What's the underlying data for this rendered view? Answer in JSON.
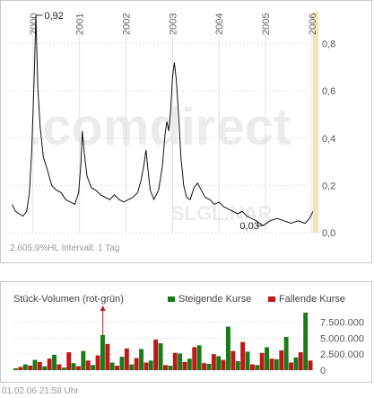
{
  "chart_data": [
    {
      "type": "line",
      "x_unit": "year",
      "x_tick_labels": [
        "2000",
        "2001",
        "2002",
        "2003",
        "2004",
        "2005",
        "2006"
      ],
      "y_tick_labels": [
        "0,0",
        "0,2",
        "0,4",
        "0,6",
        "0,8"
      ],
      "ylim": [
        0,
        0.92
      ],
      "xlim": [
        1999.5,
        2006.1
      ],
      "grid": true,
      "annotations": [
        {
          "label": "0,92",
          "x": 2000.05,
          "y": 0.92
        },
        {
          "label": "0,03",
          "x": 2004.95,
          "y": 0.03
        }
      ],
      "series": [
        {
          "color": "#111111",
          "points": [
            [
              1999.55,
              0.12
            ],
            [
              1999.62,
              0.09
            ],
            [
              1999.7,
              0.08
            ],
            [
              1999.78,
              0.07
            ],
            [
              1999.86,
              0.09
            ],
            [
              1999.92,
              0.17
            ],
            [
              1999.97,
              0.35
            ],
            [
              2000.03,
              0.7
            ],
            [
              2000.06,
              0.92
            ],
            [
              2000.1,
              0.62
            ],
            [
              2000.15,
              0.45
            ],
            [
              2000.22,
              0.32
            ],
            [
              2000.3,
              0.27
            ],
            [
              2000.4,
              0.2
            ],
            [
              2000.5,
              0.18
            ],
            [
              2000.6,
              0.17
            ],
            [
              2000.7,
              0.14
            ],
            [
              2000.8,
              0.13
            ],
            [
              2000.9,
              0.12
            ],
            [
              2000.98,
              0.17
            ],
            [
              2001.03,
              0.3
            ],
            [
              2001.06,
              0.43
            ],
            [
              2001.1,
              0.34
            ],
            [
              2001.16,
              0.24
            ],
            [
              2001.25,
              0.19
            ],
            [
              2001.35,
              0.18
            ],
            [
              2001.45,
              0.16
            ],
            [
              2001.55,
              0.15
            ],
            [
              2001.65,
              0.14
            ],
            [
              2001.75,
              0.16
            ],
            [
              2001.85,
              0.14
            ],
            [
              2001.95,
              0.13
            ],
            [
              2002.05,
              0.14
            ],
            [
              2002.15,
              0.15
            ],
            [
              2002.25,
              0.17
            ],
            [
              2002.32,
              0.22
            ],
            [
              2002.38,
              0.28
            ],
            [
              2002.43,
              0.35
            ],
            [
              2002.47,
              0.27
            ],
            [
              2002.52,
              0.18
            ],
            [
              2002.6,
              0.14
            ],
            [
              2002.7,
              0.18
            ],
            [
              2002.78,
              0.28
            ],
            [
              2002.84,
              0.42
            ],
            [
              2002.88,
              0.47
            ],
            [
              2002.92,
              0.43
            ],
            [
              2002.96,
              0.52
            ],
            [
              2003.0,
              0.66
            ],
            [
              2003.04,
              0.72
            ],
            [
              2003.08,
              0.65
            ],
            [
              2003.13,
              0.5
            ],
            [
              2003.18,
              0.32
            ],
            [
              2003.24,
              0.2
            ],
            [
              2003.3,
              0.15
            ],
            [
              2003.38,
              0.14
            ],
            [
              2003.46,
              0.19
            ],
            [
              2003.54,
              0.21
            ],
            [
              2003.62,
              0.18
            ],
            [
              2003.7,
              0.15
            ],
            [
              2003.8,
              0.14
            ],
            [
              2003.9,
              0.12
            ],
            [
              2004.0,
              0.13
            ],
            [
              2004.1,
              0.11
            ],
            [
              2004.2,
              0.1
            ],
            [
              2004.3,
              0.09
            ],
            [
              2004.4,
              0.08
            ],
            [
              2004.5,
              0.09
            ],
            [
              2004.6,
              0.07
            ],
            [
              2004.7,
              0.06
            ],
            [
              2004.8,
              0.05
            ],
            [
              2004.95,
              0.03
            ],
            [
              2005.1,
              0.05
            ],
            [
              2005.25,
              0.06
            ],
            [
              2005.4,
              0.05
            ],
            [
              2005.55,
              0.04
            ],
            [
              2005.7,
              0.05
            ],
            [
              2005.85,
              0.04
            ],
            [
              2005.95,
              0.06
            ],
            [
              2006.02,
              0.09
            ]
          ]
        }
      ]
    },
    {
      "type": "bar",
      "title": "Stück-Volumen (rot-grün)",
      "legend_placement": "top-right",
      "y_tick_labels": [
        "0",
        "2.500.000",
        "5.000.000",
        "7.500.000"
      ],
      "ylim": [
        0,
        9000000
      ],
      "series": [
        {
          "name": "Steigende Kurse",
          "color": "#1a7a1a",
          "values": [
            300000,
            900000,
            1600000,
            600000,
            2400000,
            400000,
            1100000,
            3000000,
            800000,
            5500000,
            1200000,
            2100000,
            900000,
            3300000,
            1500000,
            4200000,
            700000,
            2600000,
            1800000,
            3900000,
            1000000,
            2200000,
            6800000,
            1400000,
            2900000,
            800000,
            3600000,
            1700000,
            5200000,
            2000000,
            9000000
          ]
        },
        {
          "name": "Fallende Kurse",
          "color": "#c01818",
          "values": [
            500000,
            700000,
            1300000,
            1800000,
            900000,
            2800000,
            600000,
            1500000,
            2300000,
            4100000,
            700000,
            3400000,
            1900000,
            1200000,
            4800000,
            800000,
            2700000,
            1300000,
            3600000,
            1100000,
            2500000,
            1600000,
            3000000,
            4400000,
            900000,
            2700000,
            1800000,
            3100000,
            1200000,
            2800000,
            1500000
          ]
        }
      ]
    }
  ],
  "watermark": {
    "text": ".comdirect",
    "symbol": "SLGL.NAR"
  },
  "stats": {
    "line": "2.605,9%HL Intervall: 1 Tag"
  },
  "footer": {
    "timestamp": "01.02.06   21:58 Uhr"
  },
  "colors": {
    "accent_band": "#f5e6b0",
    "up": "#1a7a1a",
    "down": "#c01818",
    "grid": "#e2e2e2"
  }
}
